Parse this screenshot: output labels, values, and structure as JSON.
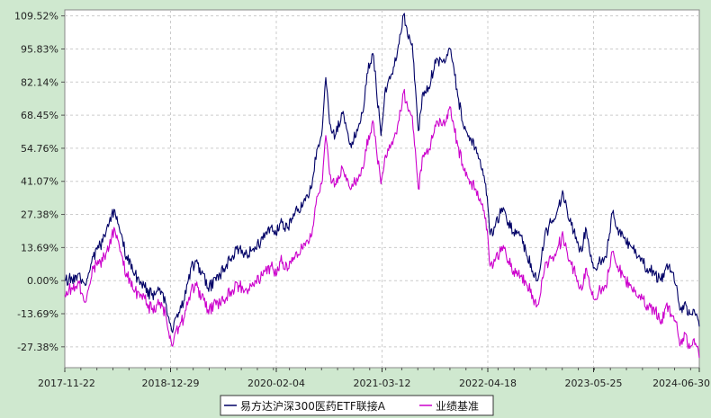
{
  "chart_data": {
    "type": "line",
    "title": "",
    "xlabel": "",
    "ylabel": "",
    "x_ticks": [
      "2017-11-22",
      "2018-12-29",
      "2020-02-04",
      "2021-03-12",
      "2022-04-18",
      "2023-05-25",
      "2024-06-30"
    ],
    "y_ticks": [
      "109.52%",
      "95.83%",
      "82.14%",
      "68.45%",
      "54.76%",
      "41.07%",
      "27.38%",
      "13.69%",
      "0.00%",
      "-13.69%",
      "-27.38%"
    ],
    "y_tick_values": [
      109.52,
      95.83,
      82.14,
      68.45,
      54.76,
      41.07,
      27.38,
      13.69,
      0.0,
      -13.69,
      -27.38
    ],
    "ylim": [
      -36,
      112
    ],
    "xlim": [
      "2017-11-22",
      "2024-06-30"
    ],
    "grid": true,
    "legend_position": "bottom-center",
    "series": [
      {
        "name": "易方达沪深300医药ETF联接A",
        "color": "#000066",
        "points": [
          [
            "2017-11-22",
            0.0
          ],
          [
            "2017-12-20",
            0.5
          ],
          [
            "2018-01-15",
            3.0
          ],
          [
            "2018-02-08",
            -2.0
          ],
          [
            "2018-03-10",
            10.0
          ],
          [
            "2018-04-15",
            16.0
          ],
          [
            "2018-05-10",
            24.0
          ],
          [
            "2018-05-28",
            29.5
          ],
          [
            "2018-06-20",
            20.0
          ],
          [
            "2018-07-15",
            10.0
          ],
          [
            "2018-08-10",
            3.0
          ],
          [
            "2018-09-10",
            -1.0
          ],
          [
            "2018-10-18",
            -6.0
          ],
          [
            "2018-11-15",
            -4.0
          ],
          [
            "2018-12-10",
            -9.0
          ],
          [
            "2019-01-03",
            -21.0
          ],
          [
            "2019-01-20",
            -15.0
          ],
          [
            "2019-02-20",
            -8.0
          ],
          [
            "2019-03-15",
            5.0
          ],
          [
            "2019-04-05",
            8.0
          ],
          [
            "2019-04-25",
            3.0
          ],
          [
            "2019-05-20",
            -3.0
          ],
          [
            "2019-06-20",
            0.0
          ],
          [
            "2019-07-20",
            5.0
          ],
          [
            "2019-08-20",
            10.0
          ],
          [
            "2019-09-15",
            13.0
          ],
          [
            "2019-10-15",
            11.0
          ],
          [
            "2019-11-15",
            14.0
          ],
          [
            "2019-12-15",
            17.0
          ],
          [
            "2020-01-15",
            22.0
          ],
          [
            "2020-02-03",
            19.0
          ],
          [
            "2020-02-20",
            24.0
          ],
          [
            "2020-03-20",
            22.0
          ],
          [
            "2020-04-15",
            28.0
          ],
          [
            "2020-05-15",
            31.0
          ],
          [
            "2020-06-15",
            38.0
          ],
          [
            "2020-07-10",
            55.0
          ],
          [
            "2020-07-25",
            60.0
          ],
          [
            "2020-08-10",
            84.0
          ],
          [
            "2020-08-25",
            65.0
          ],
          [
            "2020-09-15",
            60.0
          ],
          [
            "2020-10-15",
            70.0
          ],
          [
            "2020-11-15",
            55.0
          ],
          [
            "2020-12-15",
            65.0
          ],
          [
            "2021-01-05",
            75.0
          ],
          [
            "2021-01-20",
            90.0
          ],
          [
            "2021-02-08",
            93.0
          ],
          [
            "2021-02-18",
            80.0
          ],
          [
            "2021-03-08",
            60.0
          ],
          [
            "2021-03-25",
            80.0
          ],
          [
            "2021-04-15",
            85.0
          ],
          [
            "2021-05-10",
            95.0
          ],
          [
            "2021-06-02",
            110.0
          ],
          [
            "2021-06-20",
            100.0
          ],
          [
            "2021-07-05",
            98.0
          ],
          [
            "2021-07-28",
            62.0
          ],
          [
            "2021-08-15",
            78.0
          ],
          [
            "2021-09-05",
            80.0
          ],
          [
            "2021-10-05",
            92.0
          ],
          [
            "2021-11-05",
            90.0
          ],
          [
            "2021-11-25",
            96.0
          ],
          [
            "2021-12-10",
            88.0
          ],
          [
            "2021-12-28",
            75.0
          ],
          [
            "2022-01-15",
            64.0
          ],
          [
            "2022-02-05",
            60.0
          ],
          [
            "2022-03-01",
            55.0
          ],
          [
            "2022-03-20",
            50.0
          ],
          [
            "2022-04-10",
            40.0
          ],
          [
            "2022-04-27",
            19.0
          ],
          [
            "2022-05-15",
            22.0
          ],
          [
            "2022-06-10",
            30.0
          ],
          [
            "2022-07-05",
            24.0
          ],
          [
            "2022-07-25",
            20.0
          ],
          [
            "2022-08-20",
            19.0
          ],
          [
            "2022-09-15",
            10.0
          ],
          [
            "2022-10-05",
            4.0
          ],
          [
            "2022-10-25",
            0.0
          ],
          [
            "2022-11-20",
            18.0
          ],
          [
            "2022-12-20",
            25.0
          ],
          [
            "2023-01-10",
            30.0
          ],
          [
            "2023-01-30",
            36.0
          ],
          [
            "2023-02-20",
            25.0
          ],
          [
            "2023-03-20",
            18.0
          ],
          [
            "2023-04-10",
            12.0
          ],
          [
            "2023-04-25",
            22.0
          ],
          [
            "2023-05-10",
            12.0
          ],
          [
            "2023-05-30",
            5.0
          ],
          [
            "2023-06-20",
            8.0
          ],
          [
            "2023-07-10",
            10.0
          ],
          [
            "2023-08-05",
            28.0
          ],
          [
            "2023-08-25",
            22.0
          ],
          [
            "2023-09-15",
            18.0
          ],
          [
            "2023-10-10",
            15.0
          ],
          [
            "2023-10-31",
            13.0
          ],
          [
            "2023-11-20",
            8.0
          ],
          [
            "2023-12-15",
            5.0
          ],
          [
            "2024-01-15",
            3.0
          ],
          [
            "2024-02-05",
            0.0
          ],
          [
            "2024-02-25",
            6.0
          ],
          [
            "2024-03-15",
            4.0
          ],
          [
            "2024-04-05",
            -2.0
          ],
          [
            "2024-04-20",
            -12.0
          ],
          [
            "2024-05-10",
            -10.0
          ],
          [
            "2024-05-25",
            -14.0
          ],
          [
            "2024-06-10",
            -12.0
          ],
          [
            "2024-06-30",
            -19.0
          ]
        ]
      },
      {
        "name": "业绩基准",
        "color": "#cc00cc",
        "points": [
          [
            "2017-11-22",
            -6.0
          ],
          [
            "2017-12-20",
            -3.0
          ],
          [
            "2018-01-15",
            -1.0
          ],
          [
            "2018-02-08",
            -9.0
          ],
          [
            "2018-03-10",
            5.0
          ],
          [
            "2018-04-15",
            8.0
          ],
          [
            "2018-05-10",
            14.0
          ],
          [
            "2018-05-28",
            22.0
          ],
          [
            "2018-06-20",
            12.0
          ],
          [
            "2018-07-15",
            3.0
          ],
          [
            "2018-08-10",
            -4.0
          ],
          [
            "2018-09-10",
            -6.0
          ],
          [
            "2018-10-18",
            -12.0
          ],
          [
            "2018-11-15",
            -10.0
          ],
          [
            "2018-12-10",
            -14.0
          ],
          [
            "2019-01-03",
            -27.0
          ],
          [
            "2019-01-20",
            -20.0
          ],
          [
            "2019-02-20",
            -15.0
          ],
          [
            "2019-03-15",
            -5.0
          ],
          [
            "2019-04-05",
            -2.0
          ],
          [
            "2019-04-25",
            -7.0
          ],
          [
            "2019-05-20",
            -12.0
          ],
          [
            "2019-06-20",
            -10.0
          ],
          [
            "2019-07-20",
            -8.0
          ],
          [
            "2019-08-20",
            -4.0
          ],
          [
            "2019-09-15",
            -2.0
          ],
          [
            "2019-10-15",
            -4.0
          ],
          [
            "2019-11-15",
            0.0
          ],
          [
            "2019-12-15",
            2.0
          ],
          [
            "2020-01-15",
            6.0
          ],
          [
            "2020-02-03",
            2.0
          ],
          [
            "2020-02-20",
            8.0
          ],
          [
            "2020-03-20",
            5.0
          ],
          [
            "2020-04-15",
            10.0
          ],
          [
            "2020-05-15",
            13.0
          ],
          [
            "2020-06-15",
            18.0
          ],
          [
            "2020-07-10",
            35.0
          ],
          [
            "2020-07-25",
            40.0
          ],
          [
            "2020-08-10",
            60.0
          ],
          [
            "2020-08-25",
            44.0
          ],
          [
            "2020-09-15",
            40.0
          ],
          [
            "2020-10-15",
            46.0
          ],
          [
            "2020-11-15",
            38.0
          ],
          [
            "2020-12-15",
            44.0
          ],
          [
            "2021-01-05",
            50.0
          ],
          [
            "2021-01-20",
            60.0
          ],
          [
            "2021-02-08",
            65.0
          ],
          [
            "2021-02-18",
            55.0
          ],
          [
            "2021-03-08",
            40.0
          ],
          [
            "2021-03-25",
            52.0
          ],
          [
            "2021-04-15",
            56.0
          ],
          [
            "2021-05-10",
            64.0
          ],
          [
            "2021-06-02",
            78.0
          ],
          [
            "2021-06-20",
            70.0
          ],
          [
            "2021-07-05",
            68.0
          ],
          [
            "2021-07-28",
            38.0
          ],
          [
            "2021-08-15",
            52.0
          ],
          [
            "2021-09-05",
            54.0
          ],
          [
            "2021-10-05",
            66.0
          ],
          [
            "2021-11-05",
            64.0
          ],
          [
            "2021-11-25",
            72.0
          ],
          [
            "2021-12-10",
            64.0
          ],
          [
            "2021-12-28",
            55.0
          ],
          [
            "2022-01-15",
            46.0
          ],
          [
            "2022-02-05",
            42.0
          ],
          [
            "2022-03-01",
            38.0
          ],
          [
            "2022-03-20",
            34.0
          ],
          [
            "2022-04-10",
            26.0
          ],
          [
            "2022-04-27",
            6.0
          ],
          [
            "2022-05-15",
            8.0
          ],
          [
            "2022-06-10",
            14.0
          ],
          [
            "2022-07-05",
            8.0
          ],
          [
            "2022-07-25",
            4.0
          ],
          [
            "2022-08-20",
            2.0
          ],
          [
            "2022-09-15",
            -2.0
          ],
          [
            "2022-10-05",
            -6.0
          ],
          [
            "2022-10-25",
            -10.0
          ],
          [
            "2022-11-20",
            5.0
          ],
          [
            "2022-12-20",
            10.0
          ],
          [
            "2023-01-10",
            14.0
          ],
          [
            "2023-01-30",
            18.0
          ],
          [
            "2023-02-20",
            8.0
          ],
          [
            "2023-03-20",
            2.0
          ],
          [
            "2023-04-10",
            -4.0
          ],
          [
            "2023-04-25",
            5.0
          ],
          [
            "2023-05-10",
            -2.0
          ],
          [
            "2023-05-30",
            -8.0
          ],
          [
            "2023-06-20",
            -4.0
          ],
          [
            "2023-07-10",
            -2.0
          ],
          [
            "2023-08-05",
            12.0
          ],
          [
            "2023-08-25",
            6.0
          ],
          [
            "2023-09-15",
            2.0
          ],
          [
            "2023-10-10",
            -2.0
          ],
          [
            "2023-10-31",
            -4.0
          ],
          [
            "2023-11-20",
            -8.0
          ],
          [
            "2023-12-15",
            -10.0
          ],
          [
            "2024-01-15",
            -12.0
          ],
          [
            "2024-02-05",
            -18.0
          ],
          [
            "2024-02-25",
            -10.0
          ],
          [
            "2024-03-15",
            -14.0
          ],
          [
            "2024-04-05",
            -17.0
          ],
          [
            "2024-04-20",
            -26.0
          ],
          [
            "2024-05-10",
            -22.0
          ],
          [
            "2024-05-25",
            -28.0
          ],
          [
            "2024-06-10",
            -24.0
          ],
          [
            "2024-06-30",
            -32.0
          ]
        ]
      }
    ]
  }
}
